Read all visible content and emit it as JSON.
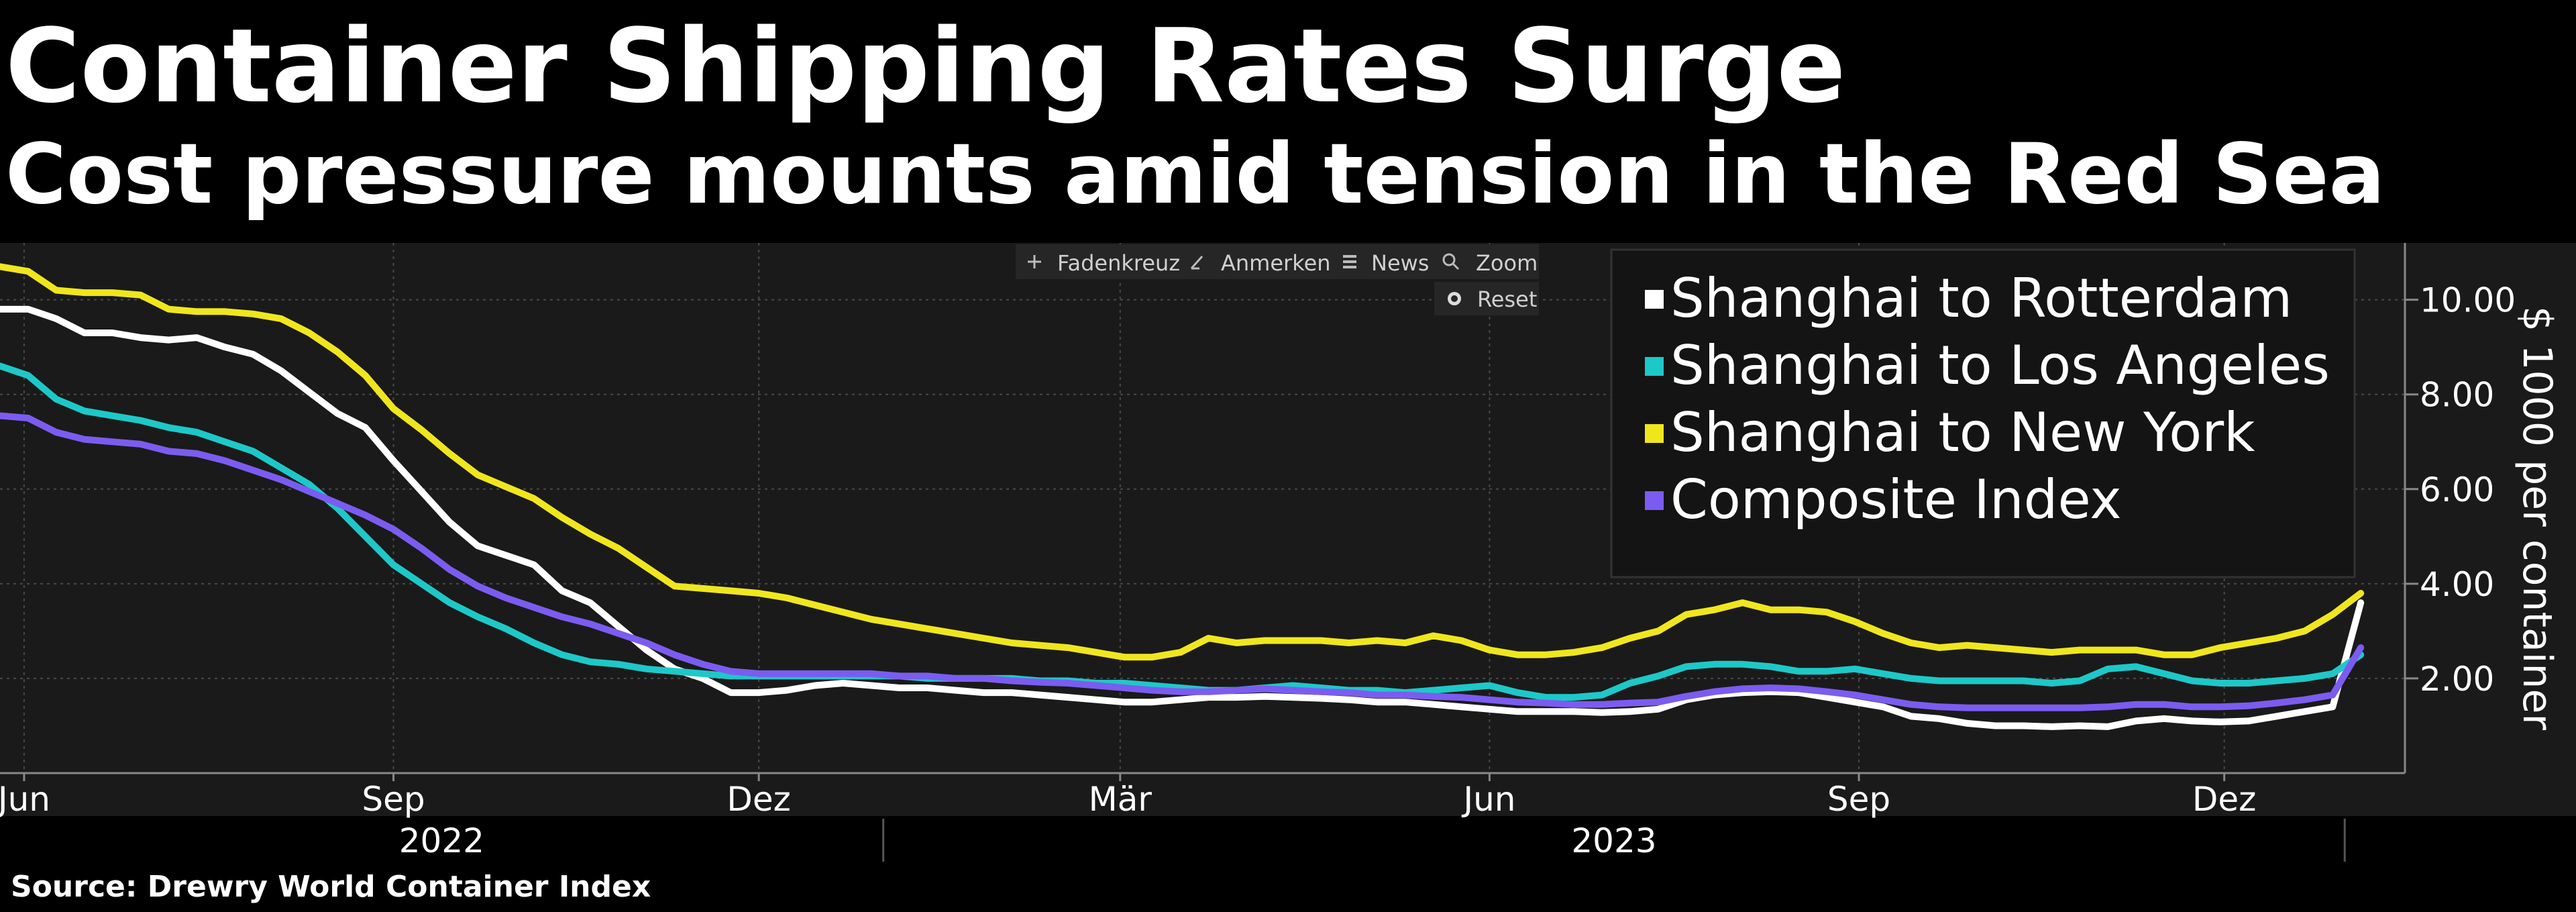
{
  "header": {
    "title": "Container Shipping Rates Surge",
    "subtitle": "Cost pressure mounts amid tension in the Red Sea"
  },
  "footer": {
    "source": "Source: Drewry World Container Index"
  },
  "toolbar": {
    "crosshair_label": "Fadenkreuz",
    "crosshair_icon": "crosshair-icon",
    "annotate_label": "Anmerken",
    "annotate_icon": "pencil-icon",
    "news_label": "News",
    "news_icon": "news-icon",
    "zoom_label": "Zoom",
    "zoom_icon": "magnifier-icon",
    "reset_label": "Reset",
    "reset_icon": "reset-icon"
  },
  "colors": {
    "background": "#000000",
    "plot_background": "#1a1a1a",
    "gridline": "#4a4a4a",
    "rotterdam": "#ffffff",
    "los_angeles": "#1ec8c8",
    "new_york": "#f0e61e",
    "composite": "#7b5cf0"
  },
  "chart_data": {
    "type": "line",
    "title": "Container Shipping Rates Surge",
    "subtitle": "Cost pressure mounts amid tension in the Red Sea",
    "ylabel": "$ 1000 per container",
    "ylim": [
      0,
      11.2
    ],
    "yticks": [
      2,
      4,
      6,
      8,
      10
    ],
    "ytick_labels": [
      "2.00",
      "4.00",
      "6.00",
      "8.00",
      "10.00"
    ],
    "xlim": [
      "2022-05-26",
      "2024-01-15"
    ],
    "x_month_ticks": [
      {
        "date": "2022-06-01",
        "label": "Jun"
      },
      {
        "date": "2022-09-01",
        "label": "Sep"
      },
      {
        "date": "2022-12-01",
        "label": "Dez"
      },
      {
        "date": "2023-03-01",
        "label": "Mär"
      },
      {
        "date": "2023-06-01",
        "label": "Jun"
      },
      {
        "date": "2023-09-01",
        "label": "Sep"
      },
      {
        "date": "2023-12-01",
        "label": "Dez"
      }
    ],
    "x_year_labels": [
      {
        "label": "2022",
        "from": "2022-05-26",
        "to": "2023-01-01"
      },
      {
        "label": "2023",
        "from": "2023-01-01",
        "to": "2023-12-31"
      }
    ],
    "legend_position": "top-right",
    "grid": true,
    "x": [
      "2022-05-26",
      "2022-06-02",
      "2022-06-09",
      "2022-06-16",
      "2022-06-23",
      "2022-06-30",
      "2022-07-07",
      "2022-07-14",
      "2022-07-21",
      "2022-07-28",
      "2022-08-04",
      "2022-08-11",
      "2022-08-18",
      "2022-08-25",
      "2022-09-01",
      "2022-09-08",
      "2022-09-15",
      "2022-09-22",
      "2022-09-29",
      "2022-10-06",
      "2022-10-13",
      "2022-10-20",
      "2022-10-27",
      "2022-11-03",
      "2022-11-10",
      "2022-11-17",
      "2022-11-24",
      "2022-12-01",
      "2022-12-08",
      "2022-12-15",
      "2022-12-22",
      "2022-12-29",
      "2023-01-05",
      "2023-01-12",
      "2023-01-19",
      "2023-01-26",
      "2023-02-02",
      "2023-02-09",
      "2023-02-16",
      "2023-02-23",
      "2023-03-02",
      "2023-03-09",
      "2023-03-16",
      "2023-03-23",
      "2023-03-30",
      "2023-04-06",
      "2023-04-13",
      "2023-04-20",
      "2023-04-27",
      "2023-05-04",
      "2023-05-11",
      "2023-05-18",
      "2023-05-25",
      "2023-06-01",
      "2023-06-08",
      "2023-06-15",
      "2023-06-22",
      "2023-06-29",
      "2023-07-06",
      "2023-07-13",
      "2023-07-20",
      "2023-07-27",
      "2023-08-03",
      "2023-08-10",
      "2023-08-17",
      "2023-08-24",
      "2023-08-31",
      "2023-09-07",
      "2023-09-14",
      "2023-09-21",
      "2023-09-28",
      "2023-10-05",
      "2023-10-12",
      "2023-10-19",
      "2023-10-26",
      "2023-11-02",
      "2023-11-09",
      "2023-11-16",
      "2023-11-23",
      "2023-11-30",
      "2023-12-07",
      "2023-12-14",
      "2023-12-21",
      "2023-12-28",
      "2024-01-04"
    ],
    "series": [
      {
        "name": "Shanghai to Rotterdam",
        "color": "#ffffff",
        "values": [
          9.8,
          9.8,
          9.6,
          9.3,
          9.3,
          9.2,
          9.15,
          9.2,
          9.0,
          8.85,
          8.5,
          8.05,
          7.6,
          7.3,
          6.6,
          5.95,
          5.3,
          4.8,
          4.6,
          4.4,
          3.85,
          3.6,
          3.1,
          2.6,
          2.2,
          2.0,
          1.7,
          1.7,
          1.75,
          1.85,
          1.9,
          1.85,
          1.8,
          1.8,
          1.75,
          1.7,
          1.7,
          1.65,
          1.6,
          1.55,
          1.5,
          1.5,
          1.55,
          1.6,
          1.6,
          1.62,
          1.6,
          1.58,
          1.55,
          1.5,
          1.5,
          1.45,
          1.4,
          1.35,
          1.3,
          1.3,
          1.3,
          1.28,
          1.3,
          1.35,
          1.55,
          1.65,
          1.7,
          1.72,
          1.7,
          1.6,
          1.5,
          1.4,
          1.2,
          1.15,
          1.05,
          1.0,
          1.0,
          0.98,
          1.0,
          0.98,
          1.1,
          1.15,
          1.1,
          1.08,
          1.1,
          1.2,
          1.3,
          1.4,
          3.6
        ]
      },
      {
        "name": "Shanghai to Los Angeles",
        "color": "#1ec8c8",
        "values": [
          8.6,
          8.4,
          7.9,
          7.65,
          7.55,
          7.45,
          7.3,
          7.2,
          7.0,
          6.8,
          6.45,
          6.1,
          5.6,
          5.0,
          4.4,
          4.0,
          3.6,
          3.3,
          3.05,
          2.75,
          2.5,
          2.35,
          2.3,
          2.2,
          2.15,
          2.1,
          2.05,
          2.05,
          2.05,
          2.05,
          2.05,
          2.05,
          2.05,
          2.0,
          2.0,
          2.0,
          2.0,
          1.95,
          1.95,
          1.9,
          1.9,
          1.85,
          1.8,
          1.75,
          1.75,
          1.8,
          1.85,
          1.8,
          1.75,
          1.75,
          1.7,
          1.75,
          1.8,
          1.85,
          1.7,
          1.6,
          1.6,
          1.65,
          1.9,
          2.05,
          2.25,
          2.3,
          2.3,
          2.25,
          2.15,
          2.15,
          2.2,
          2.1,
          2.0,
          1.95,
          1.95,
          1.95,
          1.95,
          1.9,
          1.95,
          2.2,
          2.25,
          2.1,
          1.95,
          1.9,
          1.9,
          1.95,
          2.0,
          2.1,
          2.5
        ]
      },
      {
        "name": "Shanghai to New York",
        "color": "#f0e61e",
        "values": [
          10.7,
          10.6,
          10.2,
          10.15,
          10.15,
          10.1,
          9.8,
          9.75,
          9.75,
          9.7,
          9.6,
          9.3,
          8.9,
          8.4,
          7.7,
          7.25,
          6.75,
          6.3,
          6.05,
          5.8,
          5.4,
          5.05,
          4.75,
          4.35,
          3.95,
          3.9,
          3.85,
          3.8,
          3.7,
          3.55,
          3.4,
          3.25,
          3.15,
          3.05,
          2.95,
          2.85,
          2.75,
          2.7,
          2.65,
          2.55,
          2.45,
          2.45,
          2.55,
          2.85,
          2.75,
          2.8,
          2.8,
          2.8,
          2.75,
          2.8,
          2.75,
          2.9,
          2.8,
          2.6,
          2.5,
          2.5,
          2.55,
          2.65,
          2.85,
          3.0,
          3.35,
          3.45,
          3.6,
          3.45,
          3.45,
          3.4,
          3.2,
          2.95,
          2.75,
          2.65,
          2.7,
          2.65,
          2.6,
          2.55,
          2.6,
          2.6,
          2.6,
          2.5,
          2.5,
          2.65,
          2.75,
          2.85,
          3.0,
          3.35,
          3.8
        ]
      },
      {
        "name": "Composite Index",
        "color": "#7b5cf0",
        "values": [
          7.55,
          7.5,
          7.2,
          7.05,
          7.0,
          6.95,
          6.8,
          6.75,
          6.6,
          6.4,
          6.2,
          5.95,
          5.7,
          5.45,
          5.15,
          4.75,
          4.3,
          3.95,
          3.7,
          3.5,
          3.3,
          3.15,
          2.95,
          2.75,
          2.5,
          2.3,
          2.15,
          2.1,
          2.1,
          2.1,
          2.1,
          2.1,
          2.05,
          2.05,
          2.0,
          2.0,
          1.95,
          1.92,
          1.9,
          1.85,
          1.8,
          1.75,
          1.72,
          1.72,
          1.75,
          1.78,
          1.75,
          1.72,
          1.7,
          1.65,
          1.65,
          1.62,
          1.6,
          1.55,
          1.5,
          1.48,
          1.45,
          1.45,
          1.48,
          1.5,
          1.62,
          1.72,
          1.78,
          1.8,
          1.78,
          1.72,
          1.65,
          1.55,
          1.45,
          1.4,
          1.38,
          1.38,
          1.38,
          1.38,
          1.38,
          1.4,
          1.45,
          1.45,
          1.4,
          1.4,
          1.42,
          1.48,
          1.55,
          1.65,
          2.65
        ]
      }
    ]
  }
}
